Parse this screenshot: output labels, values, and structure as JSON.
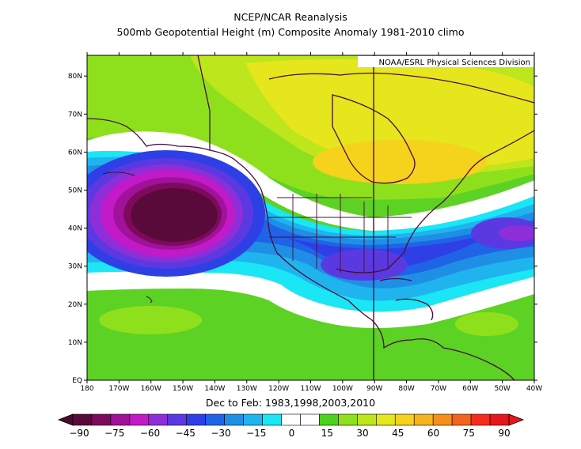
{
  "title_line1": "NCEP/NCAR Reanalysis",
  "title_line2": "500mb Geopotential Height (m) Composite Anomaly 1981-2010 climo",
  "credit": "NOAA/ESRL Physical Sciences Division",
  "subtitle": "Dec to Feb: 1983,1998,2003,2010",
  "lat_ticks": [
    "EQ",
    "10N",
    "20N",
    "30N",
    "40N",
    "50N",
    "60N",
    "70N",
    "80N"
  ],
  "lon_ticks": [
    "180",
    "170W",
    "160W",
    "150W",
    "140W",
    "130W",
    "120W",
    "110W",
    "100W",
    "90W",
    "80W",
    "70W",
    "60W",
    "50W",
    "40W"
  ],
  "colorbar": {
    "labels": [
      "-90",
      "-75",
      "-60",
      "-45",
      "-30",
      "-15",
      "0",
      "15",
      "30",
      "45",
      "60",
      "75",
      "90"
    ],
    "colors": [
      "#5a0a3a",
      "#7e0a5e",
      "#a0129a",
      "#c21ac8",
      "#8e2ed8",
      "#5a3ae0",
      "#2e3fe6",
      "#1f63e6",
      "#1f8fe6",
      "#1fb4ee",
      "#1ae6f5",
      "#ffffff",
      "#ffffff",
      "#4cd21e",
      "#8fe01c",
      "#bde61c",
      "#e6e61c",
      "#f5d21c",
      "#f5b41c",
      "#f58f1c",
      "#f5641c",
      "#f52d1c",
      "#e6161c"
    ]
  },
  "colors": {
    "deep_low": "#4a0a30",
    "low_magenta": "#b41ac0",
    "low_purple": "#6a32d8",
    "blue": "#2a4ae6",
    "mid_blue": "#2a8ef0",
    "cyan": "#1ae6f5",
    "white": "#ffffff",
    "green": "#5cd224",
    "yellow_green": "#c8e61c",
    "yellow": "#f0e61c",
    "orange_yellow": "#f5d21c",
    "land_outline": "#4a0a3a"
  }
}
